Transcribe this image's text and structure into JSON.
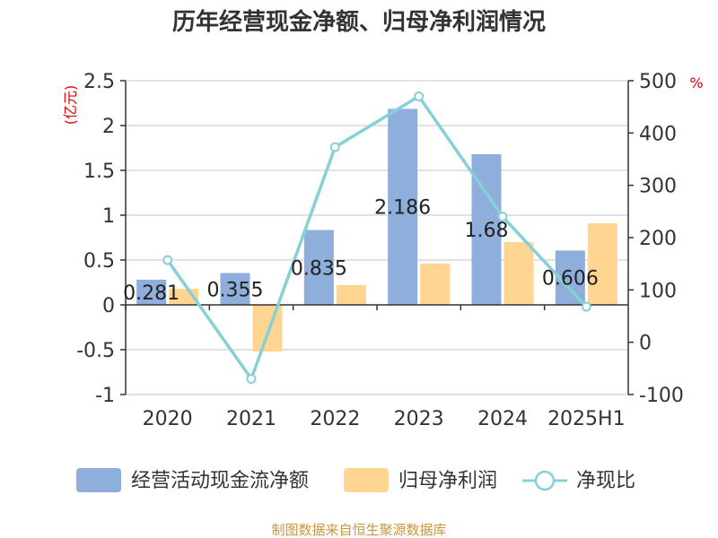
{
  "chart_data": {
    "type": "bar",
    "title": "历年经营现金净额、归母净利润情况",
    "categories": [
      "2020",
      "2021",
      "2022",
      "2023",
      "2024",
      "2025H1"
    ],
    "series": [
      {
        "name": "经营活动现金流净额",
        "kind": "bar",
        "axis": "left",
        "color": "#8eaedb",
        "values": [
          0.281,
          0.355,
          0.835,
          2.186,
          1.68,
          0.606
        ]
      },
      {
        "name": "归母净利润",
        "kind": "bar",
        "axis": "left",
        "color": "#ffd591",
        "values": [
          0.18,
          -0.52,
          0.22,
          0.46,
          0.7,
          0.91
        ]
      },
      {
        "name": "净现比",
        "kind": "line",
        "axis": "right",
        "color": "#86d0d8",
        "values": [
          157,
          -70,
          373,
          470,
          240,
          68
        ]
      }
    ],
    "data_labels": [
      "0.281",
      "0.355",
      "0.835",
      "2.186",
      "1.68",
      "0.606"
    ],
    "y_left": {
      "unit": "(亿元)",
      "ylim": [
        -1,
        2.5
      ],
      "ticks": [
        "2.5",
        "2",
        "1.5",
        "1",
        "0.5",
        "0",
        "-0.5",
        "-1"
      ]
    },
    "y_right": {
      "unit": "%",
      "ylim": [
        -100,
        500
      ],
      "ticks": [
        "500",
        "400",
        "300",
        "200",
        "100",
        "0",
        "-100"
      ]
    },
    "grid": true,
    "legend_position": "bottom"
  },
  "source": "制图数据来自恒生聚源数据库"
}
